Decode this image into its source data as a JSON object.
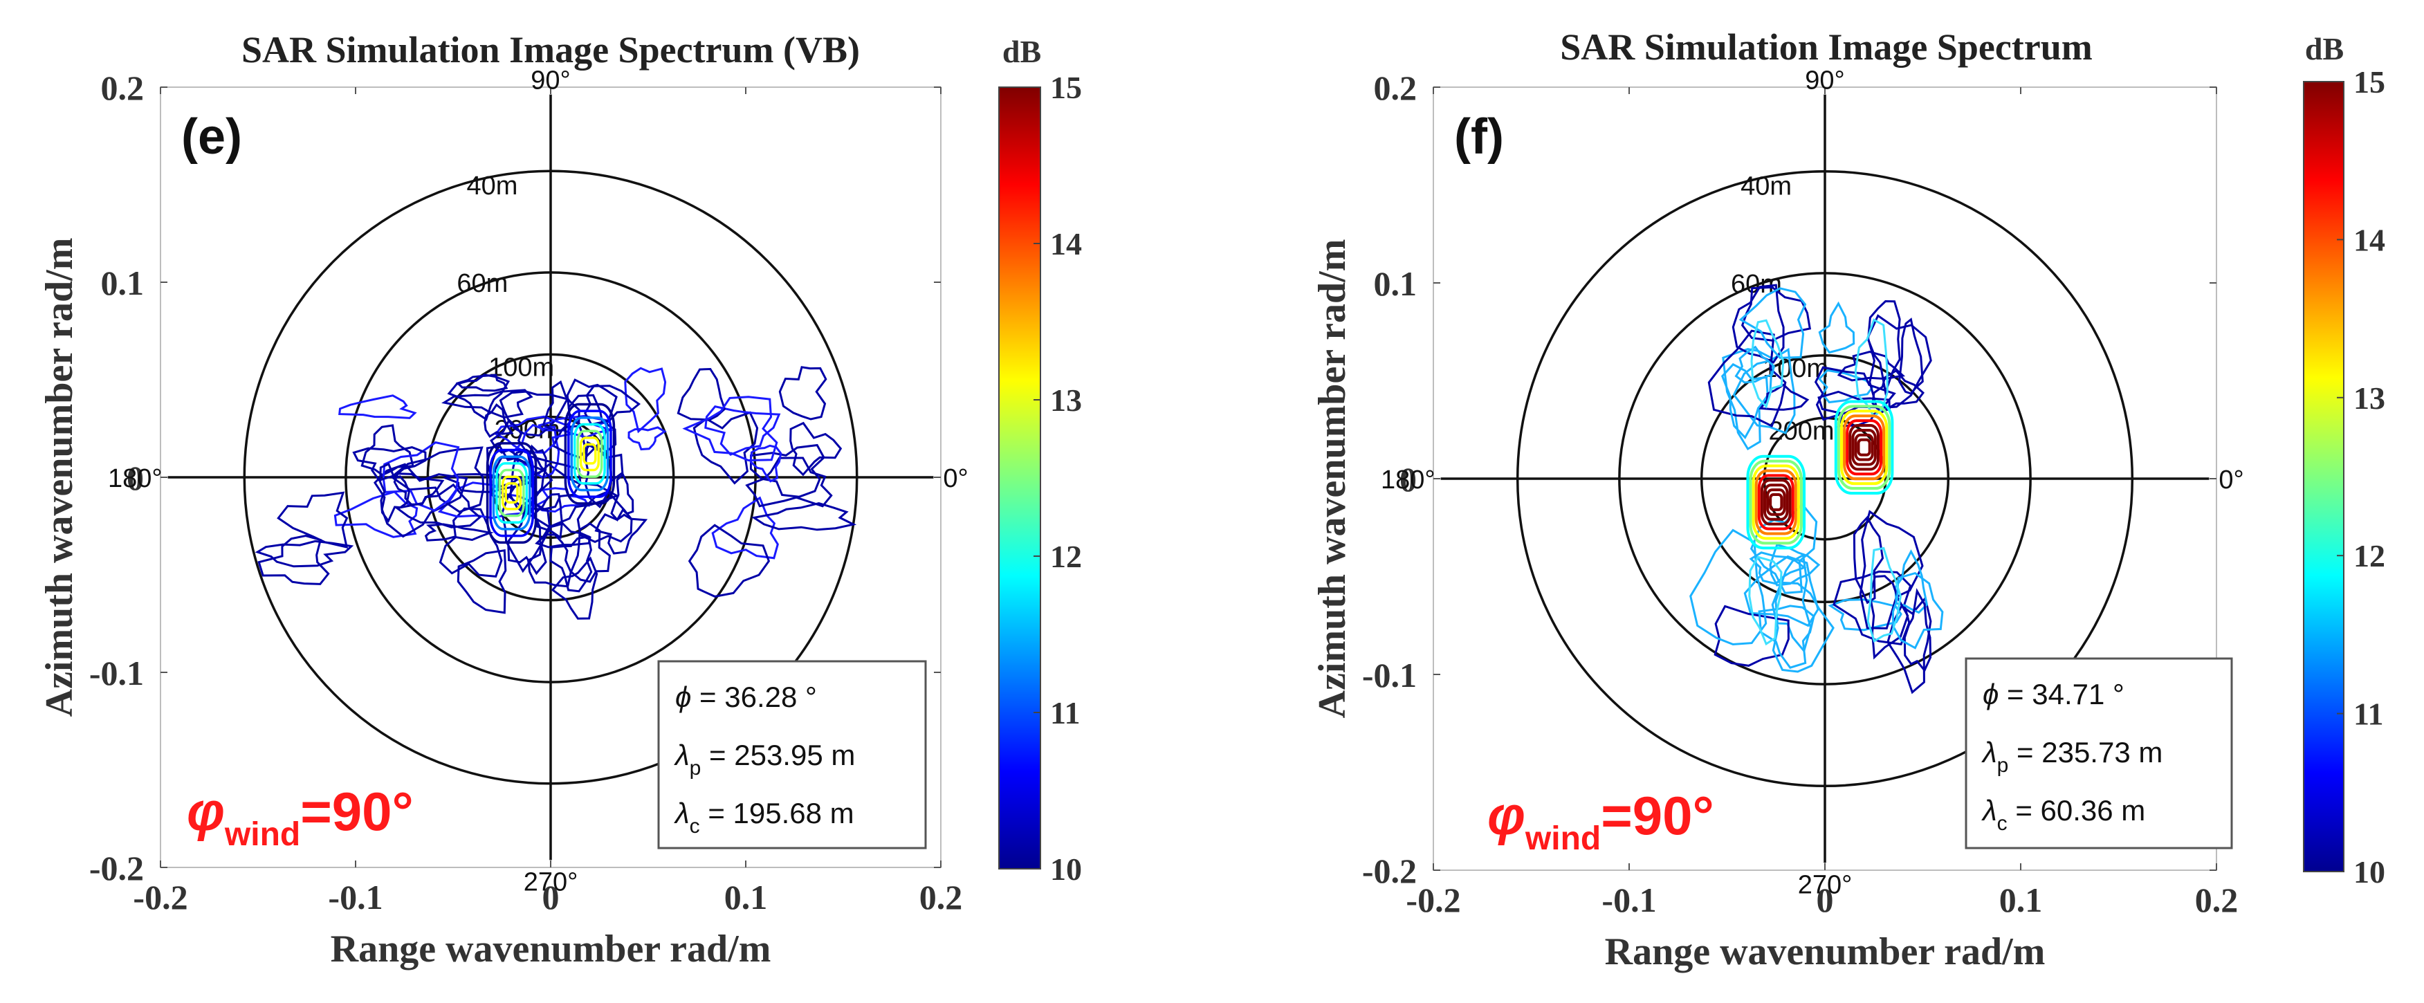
{
  "chart_data": [
    {
      "type": "contour",
      "panel": "(e)",
      "title": "SAR Simulation Image Spectrum (VB)",
      "xlabel": "Range wavenumber rad/m",
      "ylabel": "Azimuth wavenumber rad/m",
      "xlim": [
        -0.2,
        0.2
      ],
      "ylim": [
        -0.2,
        0.2
      ],
      "xticks": [
        "-0.2",
        "-0.1",
        "0",
        "0.1",
        "0.2"
      ],
      "yticks": [
        "0.2",
        "0.1",
        "0",
        "-0.1",
        "-0.2"
      ],
      "polar_angles": [
        "90°",
        "180°",
        "0°",
        "270°"
      ],
      "polar_rings": [
        {
          "label": "40m",
          "k": 0.157
        },
        {
          "label": "60m",
          "k": 0.105
        },
        {
          "label": "100m",
          "k": 0.063
        },
        {
          "label": "200m",
          "k": 0.031
        }
      ],
      "info": {
        "phi": "36.28 °",
        "lambda_p": "253.95 m",
        "lambda_c": "195.68 m"
      },
      "wind": {
        "symbol": "φ",
        "sub": "wind",
        "value": "=90°"
      },
      "colorbar": {
        "label": "dB",
        "min": 10,
        "max": 15,
        "ticks": [
          "15",
          "14",
          "13",
          "12",
          "11",
          "10"
        ]
      },
      "peaks": [
        {
          "kx": -0.02,
          "ky": -0.008,
          "intensity": "medium"
        },
        {
          "kx": 0.02,
          "ky": 0.012,
          "intensity": "medium"
        }
      ]
    },
    {
      "type": "contour",
      "panel": "(f)",
      "title": "SAR Simulation Image Spectrum",
      "xlabel": "Range wavenumber rad/m",
      "ylabel": "Azimuth wavenumber rad/m",
      "xlim": [
        -0.2,
        0.2
      ],
      "ylim": [
        -0.2,
        0.2
      ],
      "xticks": [
        "-0.2",
        "-0.1",
        "0",
        "0.1",
        "0.2"
      ],
      "yticks": [
        "0.2",
        "0.1",
        "0",
        "-0.1",
        "-0.2"
      ],
      "polar_angles": [
        "90°",
        "180°",
        "0°",
        "270°"
      ],
      "polar_rings": [
        {
          "label": "40m",
          "k": 0.157
        },
        {
          "label": "60m",
          "k": 0.105
        },
        {
          "label": "100m",
          "k": 0.063
        },
        {
          "label": "200m",
          "k": 0.031
        }
      ],
      "info": {
        "phi": "34.71 °",
        "lambda_p": "235.73 m",
        "lambda_c": "60.36 m"
      },
      "wind": {
        "symbol": "φ",
        "sub": "wind",
        "value": "=90°"
      },
      "colorbar": {
        "label": "dB",
        "min": 10,
        "max": 15,
        "ticks": [
          "15",
          "14",
          "13",
          "12",
          "11",
          "10"
        ]
      },
      "peaks": [
        {
          "kx": -0.025,
          "ky": -0.012,
          "intensity": "high"
        },
        {
          "kx": 0.02,
          "ky": 0.016,
          "intensity": "high"
        }
      ]
    }
  ]
}
